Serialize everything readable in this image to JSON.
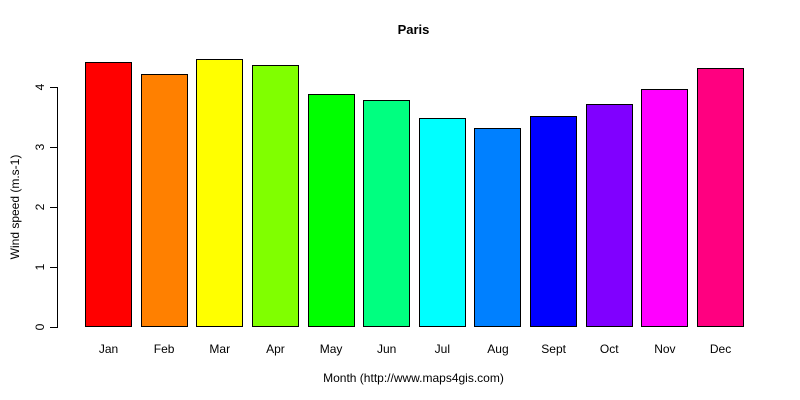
{
  "chart_data": {
    "type": "bar",
    "title": "Paris",
    "xlabel": "Month (http://www.maps4gis.com)",
    "ylabel": "Wind speed (m.s-1)",
    "categories": [
      "Jan",
      "Feb",
      "Mar",
      "Apr",
      "May",
      "Jun",
      "Jul",
      "Aug",
      "Sept",
      "Oct",
      "Nov",
      "Dec"
    ],
    "values": [
      4.42,
      4.21,
      4.47,
      4.36,
      3.89,
      3.79,
      3.49,
      3.31,
      3.51,
      3.72,
      3.97,
      4.32
    ],
    "bar_colors": [
      "#FF0000",
      "#FF8000",
      "#FFFF00",
      "#80FF00",
      "#00FF00",
      "#00FF80",
      "#00FFFF",
      "#0080FF",
      "#0000FF",
      "#8000FF",
      "#FF00FF",
      "#FF0080"
    ],
    "bar_border_color": "#000000",
    "axis_color": "#000000",
    "text_color": "#000000",
    "background_color": "#FFFFFF",
    "yticks": [
      0,
      1,
      2,
      3,
      4
    ],
    "ytick_labels": [
      "0",
      "1",
      "2",
      "3",
      "4"
    ],
    "ylim": [
      0,
      4.6
    ],
    "grid": "off",
    "legend": "none",
    "ytick_label_rotation": "vertical",
    "title_style": "bold"
  }
}
